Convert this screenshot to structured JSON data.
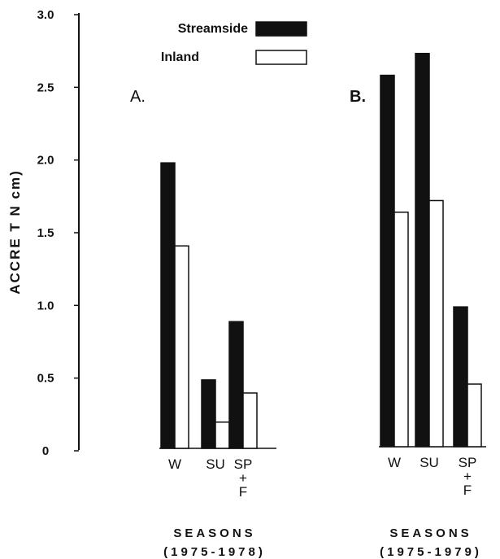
{
  "chart_data": {
    "type": "bar",
    "ylabel": "ACCRE T N cm)",
    "ylim": [
      0,
      3.0
    ],
    "yticks": [
      "0",
      "0.5",
      "1.0",
      "1.5",
      "2.0",
      "2.5",
      "3.0"
    ],
    "legend": {
      "placement": "top",
      "entries": [
        {
          "name": "Streamside",
          "color": "#111111"
        },
        {
          "name": "Inland",
          "color": "#ffffff"
        }
      ]
    },
    "panels": [
      {
        "label": "A.",
        "xlabel": "SEASONS",
        "xlabel_years": "(1975-1978)",
        "categories": [
          [
            "W"
          ],
          [
            "SU"
          ],
          [
            "SP",
            "+",
            "F"
          ]
        ],
        "series": [
          {
            "name": "Streamside",
            "values": [
              1.96,
              0.47,
              0.87
            ]
          },
          {
            "name": "Inland",
            "values": [
              1.39,
              0.18,
              0.38
            ]
          }
        ]
      },
      {
        "label": "B.",
        "xlabel": "SEASONS",
        "xlabel_years": "(1975-1979)",
        "categories": [
          [
            "W"
          ],
          [
            "SU"
          ],
          [
            "SP",
            "+",
            "F"
          ]
        ],
        "series": [
          {
            "name": "Streamside",
            "values": [
              2.55,
              2.7,
              0.96
            ]
          },
          {
            "name": "Inland",
            "values": [
              1.61,
              1.69,
              0.43
            ]
          }
        ]
      }
    ]
  }
}
